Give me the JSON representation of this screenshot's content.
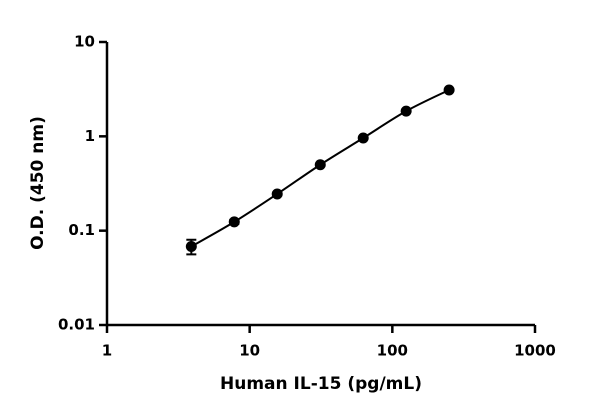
{
  "chart_data": {
    "type": "scatter",
    "x_label": "Human IL-15 (pg/mL)",
    "y_label": "O.D. (450 nm)",
    "x": [
      3.9,
      7.8,
      15.6,
      31.25,
      62.5,
      125,
      250
    ],
    "series": [
      {
        "color": "#000000",
        "values": [
          0.068,
          0.124,
          0.245,
          0.5,
          0.96,
          1.85,
          3.1
        ],
        "errors": [
          0.012,
          0.006,
          0.008,
          0.012,
          0.02,
          0.04,
          0.06
        ]
      }
    ],
    "fit_line": true,
    "x_log": true,
    "y_log": true,
    "xlim": [
      1,
      1000
    ],
    "xticks": [
      1,
      10,
      100,
      1000
    ],
    "ylim": [
      0.01,
      10
    ],
    "yticks": [
      0.01,
      0.1,
      1,
      10
    ]
  }
}
